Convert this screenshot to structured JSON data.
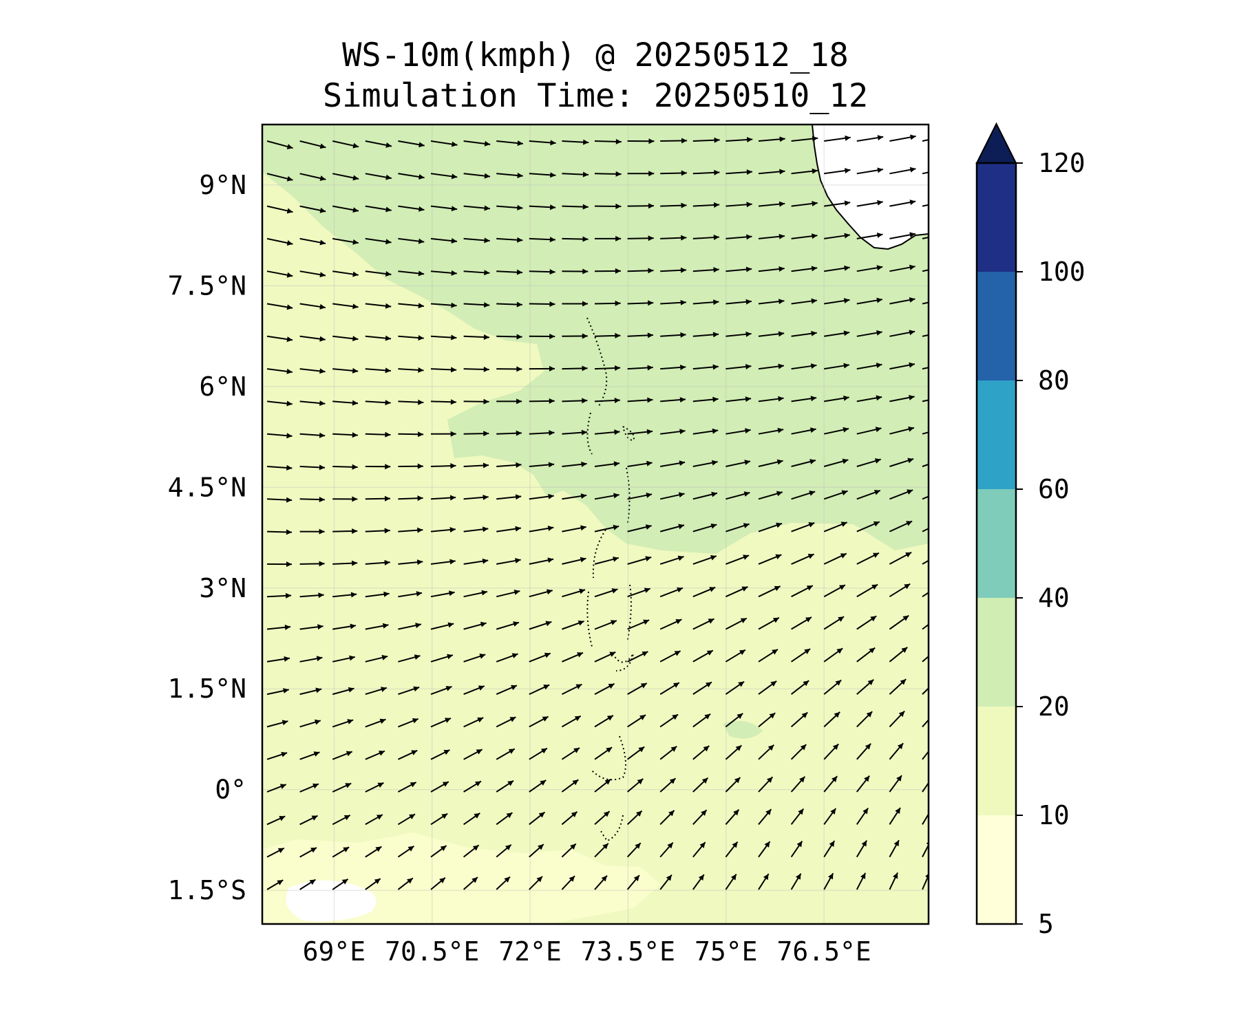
{
  "title": {
    "line1": "WS-10m(kmph) @ 20250512_18",
    "line2": "Simulation Time: 20250510_12"
  },
  "map": {
    "lon_range": [
      67.9,
      78.1
    ],
    "lat_range": [
      -2.0,
      9.9
    ],
    "x_ticks": [
      {
        "value": 69.0,
        "label": "69°E"
      },
      {
        "value": 70.5,
        "label": "70.5°E"
      },
      {
        "value": 72.0,
        "label": "72°E"
      },
      {
        "value": 73.5,
        "label": "73.5°E"
      },
      {
        "value": 75.0,
        "label": "75°E"
      },
      {
        "value": 76.5,
        "label": "76.5°E"
      }
    ],
    "y_ticks": [
      {
        "value": 9.0,
        "label": "9°N"
      },
      {
        "value": 7.5,
        "label": "7.5°N"
      },
      {
        "value": 6.0,
        "label": "6°N"
      },
      {
        "value": 4.5,
        "label": "4.5°N"
      },
      {
        "value": 3.0,
        "label": "3°N"
      },
      {
        "value": 1.5,
        "label": "1.5°N"
      },
      {
        "value": 0.0,
        "label": "0°"
      },
      {
        "value": -1.5,
        "label": "1.5°S"
      }
    ],
    "gridlines": true
  },
  "colorbar": {
    "levels": [
      5,
      10,
      20,
      40,
      60,
      80,
      100,
      120
    ],
    "labels": [
      "5",
      "10",
      "20",
      "40",
      "60",
      "80",
      "100",
      "120"
    ],
    "colors": [
      "#ffffd9",
      "#eff9bd",
      "#d0edb4",
      "#7fccbb",
      "#2ea2c7",
      "#2462aa",
      "#1e2f85",
      "#0c1e55"
    ],
    "extend": "max"
  },
  "colors": {
    "land": "#ffffff",
    "coastline": "#000000",
    "arrows": "#000000"
  }
}
